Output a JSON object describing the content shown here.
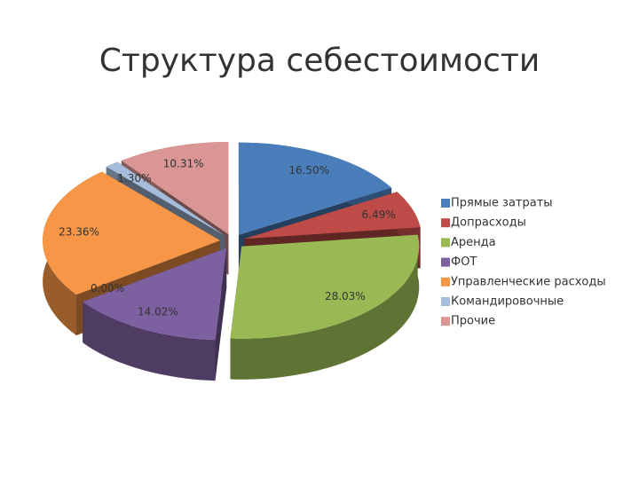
{
  "chart_data": {
    "type": "pie",
    "title": "Структура себестоимости",
    "categories": [
      "Прямые затраты",
      "Допрасходы",
      "Аренда",
      "ФОТ",
      null,
      "Управленческие расходы",
      "Командировочные",
      "Прочие"
    ],
    "values": [
      16.5,
      6.49,
      28.03,
      14.02,
      0,
      23.36,
      1.3,
      10.31
    ],
    "value_labels": [
      "16.50%",
      "6.49%",
      "28.03%",
      "14.02%",
      "0.00%",
      "23.36%",
      "1.30%",
      "10.31%"
    ],
    "colors": [
      "#4a7ebb",
      "#be4b48",
      "#98b954",
      "#7d60a0",
      "#46aac5",
      "#f79646",
      "#a5bddb",
      "#d99694"
    ],
    "legend": "right"
  }
}
